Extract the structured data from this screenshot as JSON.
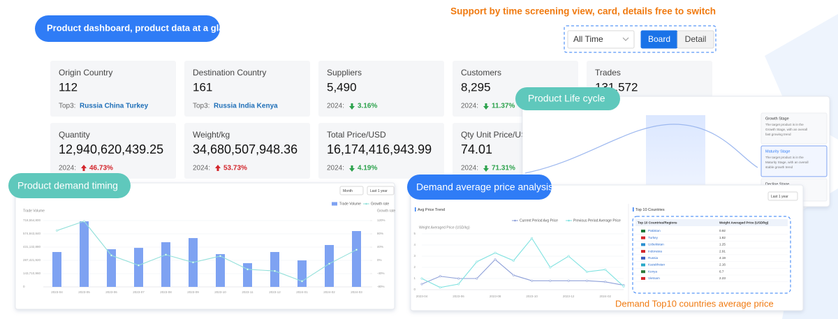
{
  "header": {
    "banner": "Product dashboard, product data at a glance",
    "tagline": "Support by time screening view, card, details free to switch",
    "time_select": "All Time",
    "view_buttons": [
      "Board",
      "Detail"
    ],
    "active_view": 0
  },
  "cards": [
    {
      "label": "Origin Country",
      "value": "112",
      "prefix": "Top3:",
      "note": "Russia China Turkey"
    },
    {
      "label": "Destination Country",
      "value": "161",
      "prefix": "Top3:",
      "note": "Russia India Kenya"
    },
    {
      "label": "Suppliers",
      "value": "5,490",
      "prefix": "2024:",
      "note": "3.16%",
      "trend": "down"
    },
    {
      "label": "Customers",
      "value": "8,295",
      "prefix": "2024:",
      "note": "11.37%",
      "trend": "down"
    },
    {
      "label": "Trades",
      "value": "131,572"
    },
    {
      "label": "Quantity",
      "value": "12,940,620,439.25",
      "prefix": "2024:",
      "note": "46.73%",
      "trend": "up"
    },
    {
      "label": "Weight/kg",
      "value": "34,680,507,948.36",
      "prefix": "2024:",
      "note": "53.73%",
      "trend": "up"
    },
    {
      "label": "Total Price/USD",
      "value": "16,174,416,943.99",
      "prefix": "2024:",
      "note": "4.19%",
      "trend": "down"
    },
    {
      "label": "Qty Unit Price/USD",
      "value": "74.01",
      "prefix": "2024:",
      "note": "71.31%",
      "trend": "down"
    }
  ],
  "lifecycle": {
    "badge": "Product Life cycle",
    "active": 1,
    "stages": [
      {
        "name": "Growth Stage",
        "text": [
          "The target product is in the",
          "Growth Stage, with an overall",
          "fast growing trend"
        ]
      },
      {
        "name": "Maturity Stage",
        "text": [
          "The target product is in the",
          "Maturity Stage, with an overall",
          "stable growth trend"
        ]
      },
      {
        "name": "Decline Stage",
        "text": []
      }
    ]
  },
  "top10": {
    "title": "Top 10 Countries",
    "columns": [
      "Top 10 Countries/Regions",
      "Weight Averaged Price (USD/kg)"
    ],
    "rows": [
      [
        "Pakistan",
        "0.92"
      ],
      [
        "Turkey",
        "1.82"
      ],
      [
        "Uzbekistan",
        "1.25"
      ],
      [
        "Indonesia",
        "2.91"
      ],
      [
        "Russia",
        "4.19"
      ],
      [
        "Kazakhstan",
        "2.16"
      ],
      [
        "Kenya",
        "6.7"
      ],
      [
        "Vietnam",
        "2.23"
      ]
    ],
    "caption": "Demand Top10 countries average price"
  },
  "chart_data": [
    {
      "type": "bar",
      "title": "Product demand timing",
      "controls": [
        "Month",
        "Last 1 year"
      ],
      "ylabel": "Trade Volume",
      "y2label": "Growth rate",
      "categories": [
        "2023-04",
        "2023-05",
        "2023-06",
        "2023-07",
        "2023-08",
        "2023-09",
        "2023-10",
        "2023-11",
        "2023-12",
        "2024-01",
        "2024-02",
        "2024-03"
      ],
      "series": [
        {
          "name": "Trade Volume",
          "type": "bar",
          "color": "#7ea2f2",
          "values": [
            378000000,
            710000000,
            408000000,
            423000000,
            484000000,
            529000000,
            355000000,
            257000000,
            378000000,
            287000000,
            454000000,
            605000000
          ]
        },
        {
          "name": "Growth rate",
          "type": "line",
          "axis": "y2",
          "color": "#92e0da",
          "values": [
            90,
            118,
            15,
            -15,
            17,
            -6,
            13,
            -27,
            -32,
            -63,
            -10,
            32
          ]
        }
      ],
      "ylim": [
        0,
        718554800
      ],
      "yticks": [
        0,
        {
          "value": 143710960,
          "label": "143,710,960"
        },
        {
          "value": 287421920,
          "label": "287,421,920"
        },
        {
          "value": 431132880,
          "label": "431,132,880"
        },
        {
          "value": 574843840,
          "label": "574,843,840"
        },
        {
          "value": 718554800,
          "label": "718,554,800"
        }
      ],
      "y2lim": [
        -80,
        120
      ],
      "y2ticks": [
        {
          "value": -80,
          "label": "-80%"
        },
        {
          "value": -40,
          "label": "-40%"
        },
        {
          "value": 0,
          "label": "0%"
        },
        {
          "value": 40,
          "label": "40%"
        },
        {
          "value": 80,
          "label": "80%"
        },
        {
          "value": 120,
          "label": "120%"
        }
      ],
      "grid": true
    },
    {
      "type": "line",
      "title": "Demand average price analysis",
      "subtitle": "Avg Price Trend",
      "controls": [
        "Last 1 year"
      ],
      "ylabel": "Weight Averaged Price (USD/kg)",
      "categories": [
        "2023-04",
        null,
        "2023-06",
        null,
        "2023-08",
        null,
        "2023-10",
        null,
        "2023-12",
        null,
        "2024-02",
        null
      ],
      "series": [
        {
          "name": "Current Period Avg Price",
          "color": "#8d9fd8",
          "values": [
            0.5,
            1.2,
            1.0,
            1.0,
            2.7,
            1.3,
            0.8,
            0.8,
            0.8,
            0.8,
            0.7,
            0.4
          ]
        },
        {
          "name": "Previous Period Average Price",
          "color": "#7fe2e0",
          "values": [
            1.0,
            0.2,
            0.5,
            2.5,
            3.3,
            2.6,
            4.6,
            2.0,
            3.0,
            1.6,
            1.8,
            0.3
          ]
        }
      ],
      "ylim": [
        0,
        5
      ],
      "yticks": [
        0,
        1,
        2,
        3,
        4,
        5
      ],
      "grid": true
    }
  ]
}
